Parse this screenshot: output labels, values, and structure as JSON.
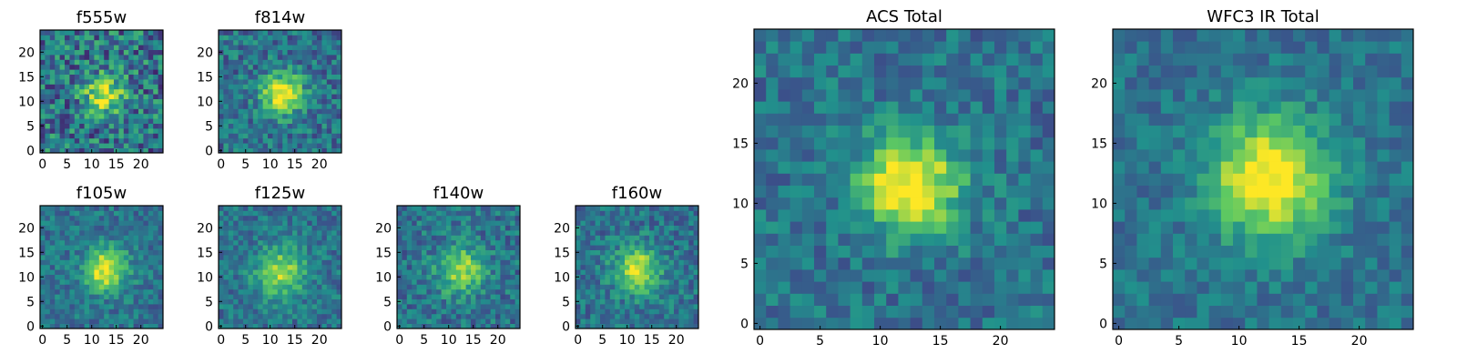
{
  "panels": [
    {
      "id": "f555w",
      "title": "f555w",
      "xticks": [
        "0",
        "5",
        "10",
        "15",
        "20"
      ],
      "yticks": [
        "0",
        "5",
        "10",
        "15",
        "20"
      ],
      "noise": 0.55,
      "peak": 0.55,
      "sigma": 2.8,
      "cx": 12.5,
      "cy": 11.2,
      "seed": 3
    },
    {
      "id": "f814w",
      "title": "f814w",
      "xticks": [
        "0",
        "5",
        "10",
        "15",
        "20"
      ],
      "yticks": [
        "0",
        "5",
        "10",
        "15",
        "20"
      ],
      "noise": 0.38,
      "peak": 0.68,
      "sigma": 2.8,
      "cx": 12.5,
      "cy": 11.5,
      "seed": 7
    },
    {
      "id": "f105w",
      "title": "f105w",
      "xticks": [
        "0",
        "5",
        "10",
        "15",
        "20"
      ],
      "yticks": [
        "0",
        "5",
        "10",
        "15",
        "20"
      ],
      "noise": 0.3,
      "peak": 0.62,
      "sigma": 3.0,
      "cx": 12.8,
      "cy": 11.5,
      "seed": 11
    },
    {
      "id": "f125w",
      "title": "f125w",
      "xticks": [
        "0",
        "5",
        "10",
        "15",
        "20"
      ],
      "yticks": [
        "0",
        "5",
        "10",
        "15",
        "20"
      ],
      "noise": 0.3,
      "peak": 0.48,
      "sigma": 3.5,
      "cx": 12.2,
      "cy": 11.0,
      "seed": 13
    },
    {
      "id": "f140w",
      "title": "f140w",
      "xticks": [
        "0",
        "5",
        "10",
        "15",
        "20"
      ],
      "yticks": [
        "0",
        "5",
        "10",
        "15",
        "20"
      ],
      "noise": 0.34,
      "peak": 0.5,
      "sigma": 3.2,
      "cx": 12.5,
      "cy": 11.5,
      "seed": 17
    },
    {
      "id": "f160w",
      "title": "f160w",
      "xticks": [
        "0",
        "5",
        "10",
        "15",
        "20"
      ],
      "yticks": [
        "0",
        "5",
        "10",
        "15",
        "20"
      ],
      "noise": 0.32,
      "peak": 0.55,
      "sigma": 3.2,
      "cx": 12.2,
      "cy": 11.5,
      "seed": 19
    },
    {
      "id": "acs_total",
      "title": "ACS Total",
      "xticks": [
        "0",
        "5",
        "10",
        "15",
        "20"
      ],
      "yticks": [
        "0",
        "5",
        "10",
        "15",
        "20"
      ],
      "noise": 0.3,
      "peak": 0.7,
      "sigma": 2.8,
      "cx": 12.5,
      "cy": 11.5,
      "seed": 23
    },
    {
      "id": "wfc3_total",
      "title": "WFC3 IR Total",
      "xticks": [
        "0",
        "5",
        "10",
        "15",
        "20"
      ],
      "yticks": [
        "0",
        "5",
        "10",
        "15",
        "20"
      ],
      "noise": 0.24,
      "peak": 0.7,
      "sigma": 3.4,
      "cx": 12.5,
      "cy": 12.0,
      "seed": 29
    }
  ],
  "colormap": {
    "name": "viridis",
    "stops": [
      "#440154",
      "#3b528b",
      "#21918c",
      "#5ec962",
      "#fde725"
    ]
  }
}
